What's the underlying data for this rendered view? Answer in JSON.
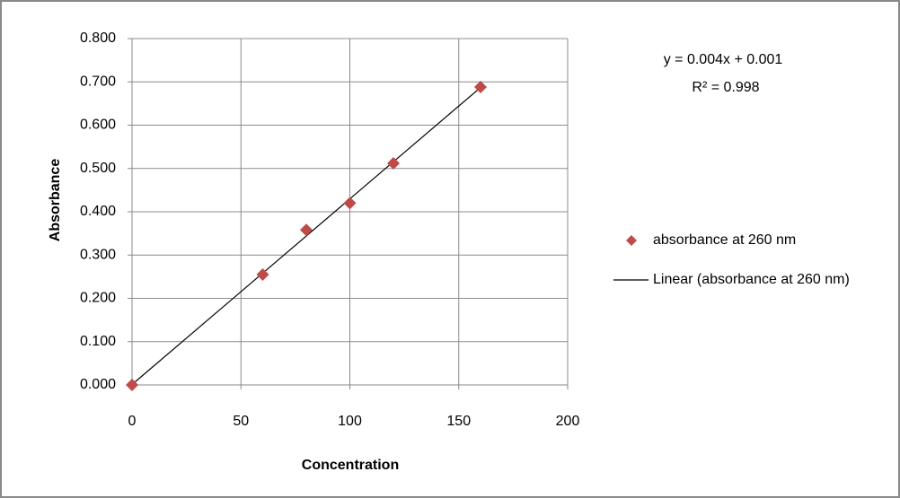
{
  "chart_data": {
    "type": "scatter",
    "x_label": "Concentration",
    "y_label": "Absorbance",
    "annotations": [
      "y = 0.004x + 0.001",
      "R² = 0.998"
    ],
    "xlim": [
      0,
      200
    ],
    "xticks": [
      0,
      50,
      100,
      150,
      200
    ],
    "ylim": [
      0,
      0.8
    ],
    "yticks": [
      {
        "value": 0,
        "label": "0.000"
      },
      {
        "value": 0.1,
        "label": "0.100"
      },
      {
        "value": 0.2,
        "label": "0.200"
      },
      {
        "value": 0.3,
        "label": "0.300"
      },
      {
        "value": 0.4,
        "label": "0.400"
      },
      {
        "value": 0.5,
        "label": "0.500"
      },
      {
        "value": 0.6,
        "label": "0.600"
      },
      {
        "value": 0.7,
        "label": "0.700"
      },
      {
        "value": 0.8,
        "label": "0.800"
      }
    ],
    "grid": true,
    "legend": "right",
    "series": [
      {
        "name": "absorbance at 260 nm",
        "style": "markers",
        "color": "#be4b48",
        "x": [
          0,
          60,
          80,
          100,
          120,
          160
        ],
        "values": [
          0.0,
          0.255,
          0.358,
          0.42,
          0.512,
          0.688
        ]
      },
      {
        "name": "Linear (absorbance at 260 nm)",
        "style": "line",
        "color": "#000000",
        "x": [
          0,
          160
        ],
        "values": [
          0.001,
          0.687
        ]
      }
    ]
  }
}
